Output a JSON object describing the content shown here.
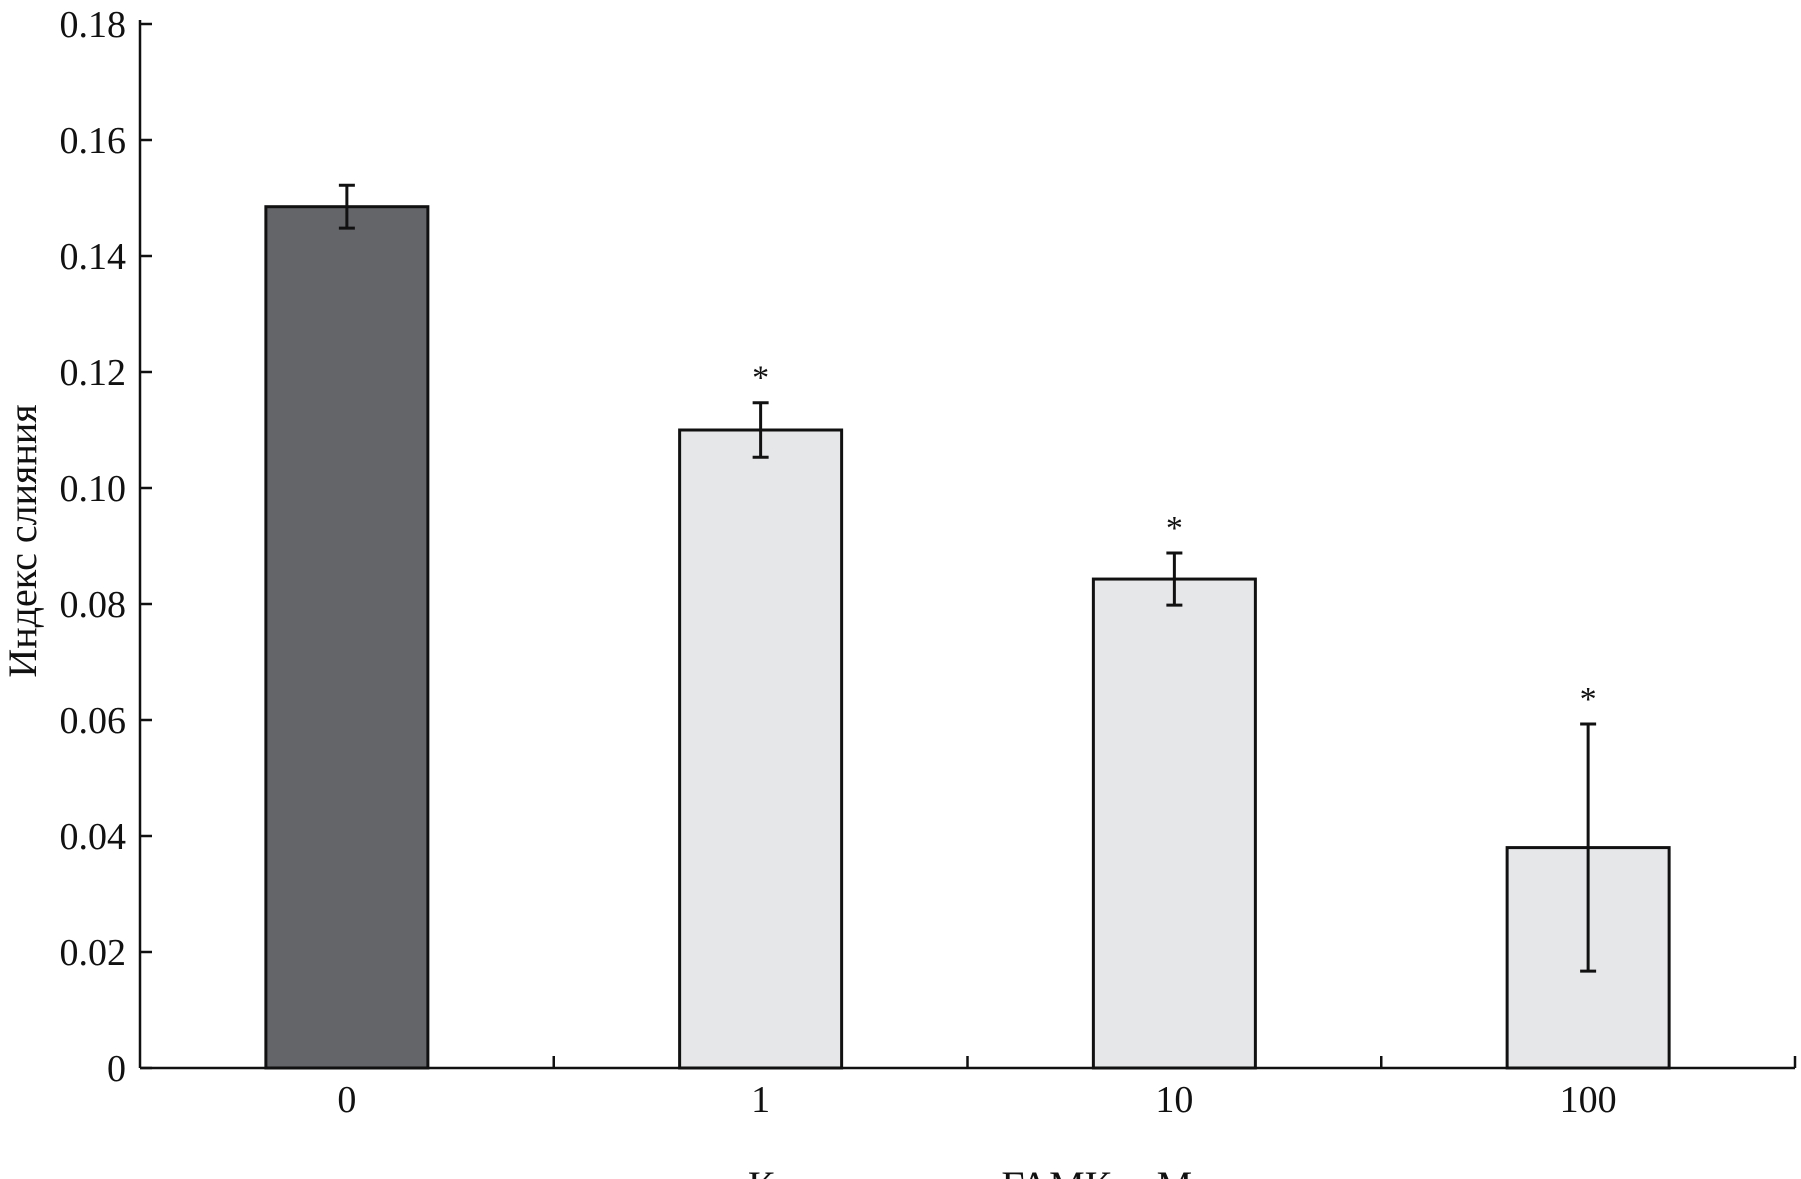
{
  "chart_data": {
    "type": "bar",
    "title": "",
    "xlabel": "Концентрация ГАМК, мМ",
    "ylabel": "Индекс слияния",
    "categories": [
      "0",
      "1",
      "10",
      "100"
    ],
    "values": [
      0.1485,
      0.11,
      0.0843,
      0.038
    ],
    "errors": [
      0.0037,
      0.0047,
      0.0045,
      0.0213
    ],
    "significance": [
      "",
      "*",
      "*",
      "*"
    ],
    "ylim": [
      0,
      0.18
    ],
    "yticks": [
      "0",
      "0.02",
      "0.04",
      "0.06",
      "0.08",
      "0.10",
      "0.12",
      "0.14",
      "0.16",
      "0.18"
    ],
    "grid": false,
    "legend": "none",
    "colors": {
      "control": "#646569",
      "treatment": "#e6e7e9",
      "stroke": "#111111"
    }
  }
}
